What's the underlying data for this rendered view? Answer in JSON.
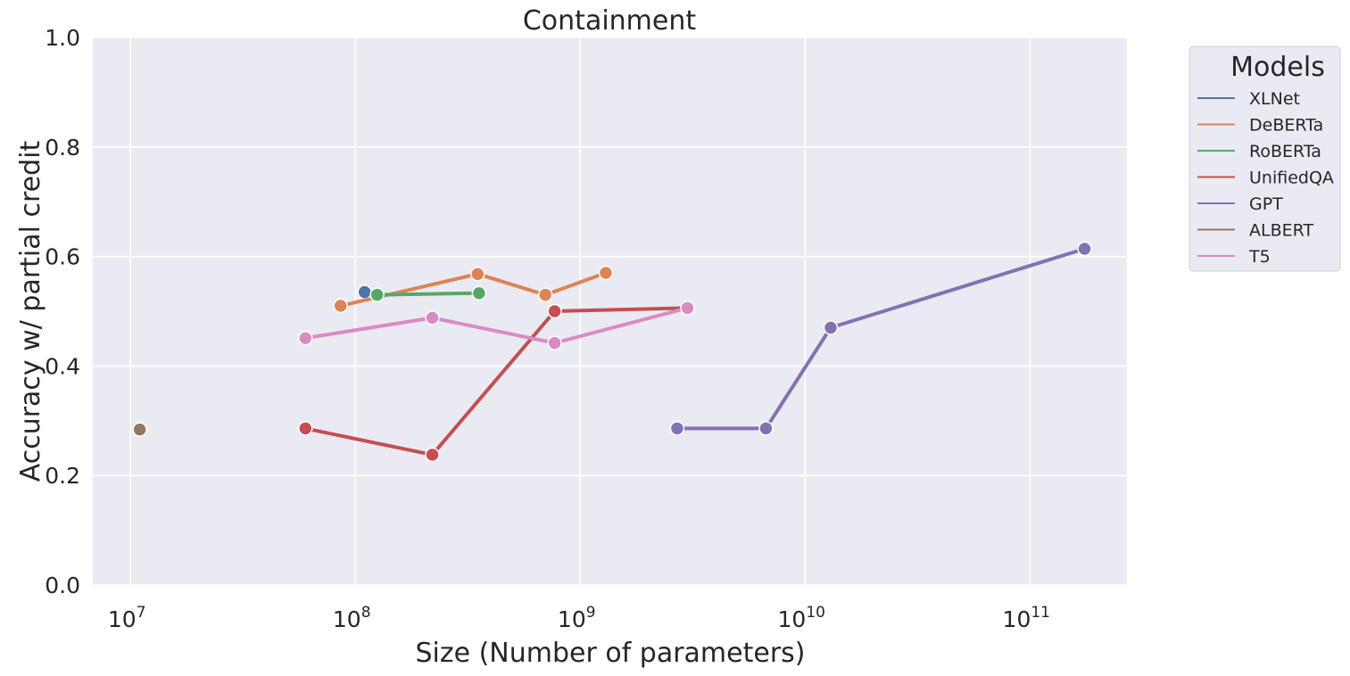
{
  "chart_data": {
    "type": "line",
    "title": "Containment",
    "xlabel": "Size (Number of parameters)",
    "ylabel": "Accuracy w/ partial credit",
    "x_scale": "log",
    "xlim": [
      6800000.0,
      270000000000.0
    ],
    "ylim": [
      0,
      1
    ],
    "x_ticks": [
      {
        "value": 10000000.0,
        "base": "10",
        "exp": "7"
      },
      {
        "value": 100000000.0,
        "base": "10",
        "exp": "8"
      },
      {
        "value": 1000000000.0,
        "base": "10",
        "exp": "9"
      },
      {
        "value": 10000000000.0,
        "base": "10",
        "exp": "10"
      },
      {
        "value": 100000000000.0,
        "base": "10",
        "exp": "11"
      }
    ],
    "y_ticks": [
      {
        "value": 0.0,
        "label": "0.0"
      },
      {
        "value": 0.2,
        "label": "0.2"
      },
      {
        "value": 0.4,
        "label": "0.4"
      },
      {
        "value": 0.6,
        "label": "0.6"
      },
      {
        "value": 0.8,
        "label": "0.8"
      },
      {
        "value": 1.0,
        "label": "1.0"
      }
    ],
    "grid": true,
    "legend": {
      "title": "Models",
      "placement": "outside-right-top"
    },
    "series": [
      {
        "name": "XLNet",
        "color": "#4c72b0",
        "points": [
          [
            110000000.0,
            0.535
          ]
        ]
      },
      {
        "name": "DeBERTa",
        "color": "#dd8452",
        "points": [
          [
            86000000.0,
            0.51
          ],
          [
            350000000.0,
            0.568
          ],
          [
            700000000.0,
            0.53
          ],
          [
            1300000000.0,
            0.57
          ]
        ]
      },
      {
        "name": "RoBERTa",
        "color": "#55a868",
        "points": [
          [
            125000000.0,
            0.53
          ],
          [
            355000000.0,
            0.533
          ]
        ]
      },
      {
        "name": "UnifiedQA",
        "color": "#c44e52",
        "points": [
          [
            60000000.0,
            0.286
          ],
          [
            220000000.0,
            0.238
          ],
          [
            770000000.0,
            0.5
          ],
          [
            3000000000.0,
            0.506
          ]
        ]
      },
      {
        "name": "GPT",
        "color": "#8172b3",
        "points": [
          [
            2700000000.0,
            0.286
          ],
          [
            6700000000.0,
            0.286
          ],
          [
            13000000000.0,
            0.47
          ],
          [
            175000000000.0,
            0.614
          ]
        ]
      },
      {
        "name": "ALBERT",
        "color": "#937860",
        "points": [
          [
            11000000.0,
            0.284
          ]
        ]
      },
      {
        "name": "T5",
        "color": "#da8bc3",
        "points": [
          [
            60000000.0,
            0.451
          ],
          [
            220000000.0,
            0.488
          ],
          [
            770000000.0,
            0.442
          ],
          [
            3000000000.0,
            0.506
          ]
        ]
      }
    ]
  }
}
